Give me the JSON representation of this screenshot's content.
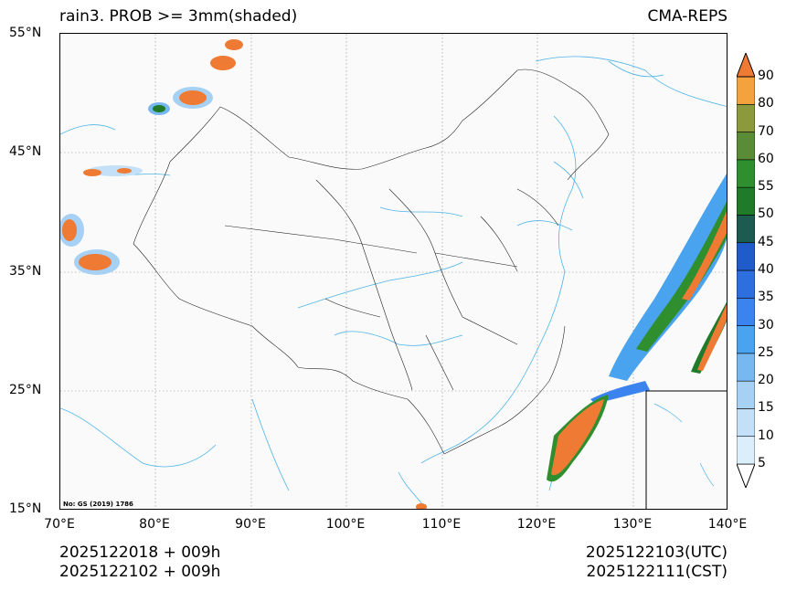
{
  "header": {
    "title": "rain3. PROB >= 3mm(shaded)",
    "model": "CMA-REPS"
  },
  "axes": {
    "lat_labels": [
      "55°N",
      "45°N",
      "35°N",
      "25°N",
      "15°N"
    ],
    "lon_labels": [
      "70°E",
      "80°E",
      "90°E",
      "100°E",
      "110°E",
      "120°E",
      "130°E",
      "140°E"
    ]
  },
  "map": {
    "extent": {
      "lon": [
        70,
        140
      ],
      "lat": [
        15,
        55
      ]
    },
    "source_note": "No: GS (2019) 1786",
    "inset": "South China Sea islands"
  },
  "colorbar": {
    "levels": [
      "5",
      "10",
      "15",
      "20",
      "25",
      "30",
      "35",
      "40",
      "45",
      "50",
      "55",
      "60",
      "70",
      "80",
      "90"
    ],
    "colors": [
      "#dbeefc",
      "#c3e0f8",
      "#a6d0f4",
      "#78b8f0",
      "#4aa3ee",
      "#3b84ef",
      "#2e6fe0",
      "#1f5bc9",
      "#1d5a4f",
      "#1f7a2a",
      "#2f8f2f",
      "#5a8c38",
      "#8c9a3c",
      "#f3a23d",
      "#ee7a33"
    ],
    "top_color": "#ee7a33"
  },
  "footer": {
    "init_utc": "2025122018  +  009h",
    "init_cst": "2025122102  +  009h",
    "valid_utc": "2025122103(UTC)",
    "valid_cst": "2025122111(CST)"
  }
}
